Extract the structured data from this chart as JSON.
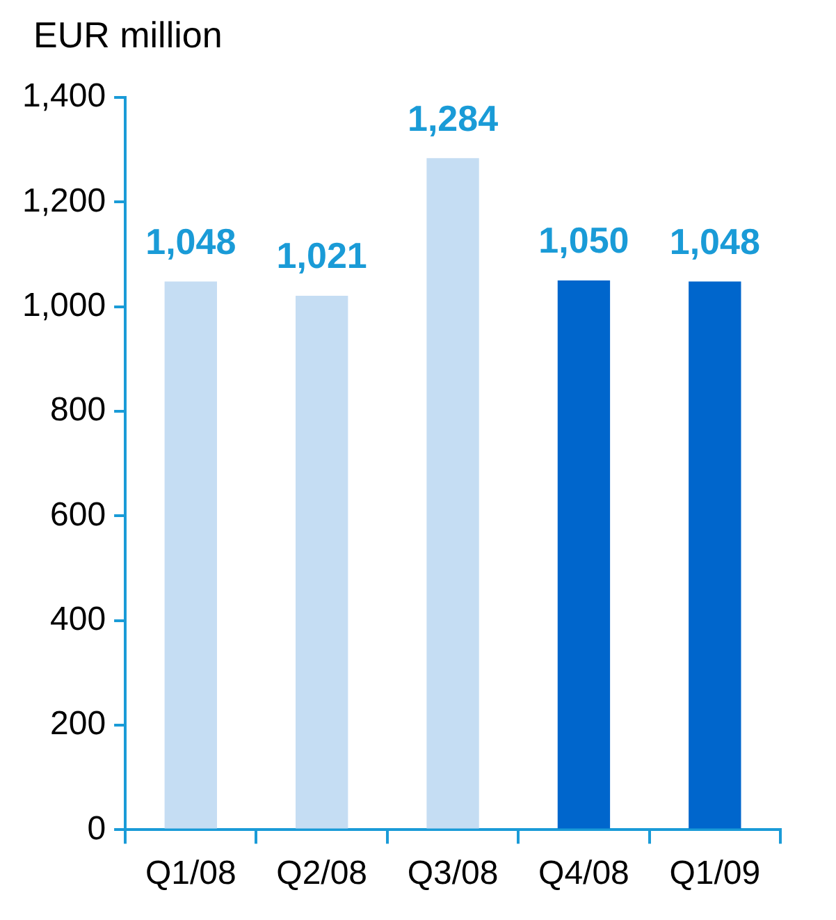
{
  "chart_data": {
    "type": "bar",
    "ylabel": "EUR million",
    "categories": [
      "Q1/08",
      "Q2/08",
      "Q3/08",
      "Q4/08",
      "Q1/09"
    ],
    "values": [
      1048,
      1021,
      1284,
      1050,
      1048
    ],
    "colors": [
      "#c5ddf3",
      "#c5ddf3",
      "#c5ddf3",
      "#0066cc",
      "#0066cc"
    ],
    "value_labels": [
      "1,048",
      "1,021",
      "1,284",
      "1,050",
      "1,048"
    ],
    "ylim": [
      0,
      1400
    ],
    "yticks": [
      0,
      {
        "value": 200,
        "label": "200"
      },
      {
        "value": 400,
        "label": "400"
      },
      {
        "value": 600,
        "label": "600"
      },
      {
        "value": 800,
        "label": "800"
      },
      {
        "value": 1000,
        "label": "1,000"
      },
      {
        "value": 1200,
        "label": "1,200"
      },
      {
        "value": 1400,
        "label": "1,400"
      }
    ]
  }
}
